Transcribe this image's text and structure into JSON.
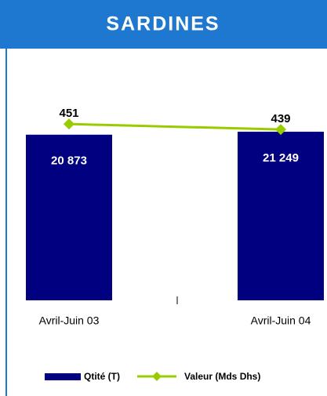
{
  "chart_data": {
    "type": "bar-line",
    "title": "SARDINES",
    "categories": [
      "Avril-Juin 03",
      "Avril-Juin 04"
    ],
    "series": [
      {
        "name": "Qtité (T)",
        "type": "bar",
        "color": "#000080",
        "values": [
          20873,
          21249
        ],
        "value_labels": [
          "20 873",
          "21 249"
        ]
      },
      {
        "name": "Valeur (Mds Dhs)",
        "type": "line",
        "axis": "y2",
        "color": "#99cc00",
        "values": [
          451,
          439
        ]
      }
    ],
    "ylim": [
      0,
      25000
    ],
    "y2lim": [
      60,
      500
    ],
    "legend": "bottom"
  }
}
